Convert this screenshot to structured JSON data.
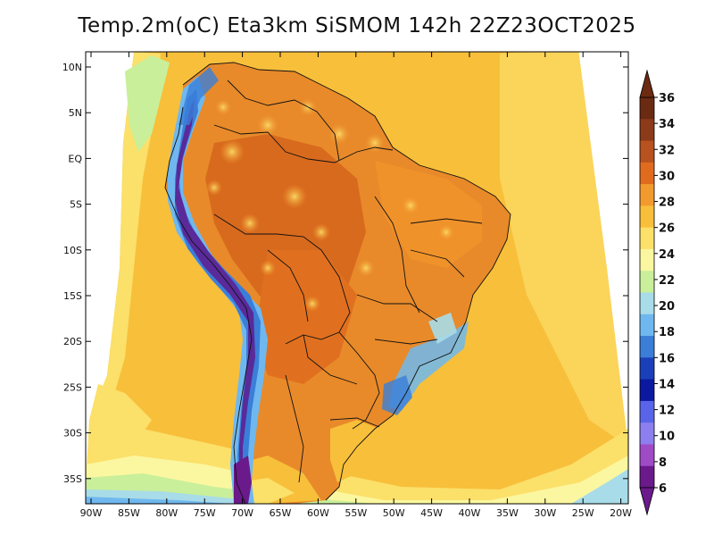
{
  "title": "Temp.2m(oC) Eta3km SiSMOM 142h 22Z23OCT2025",
  "lat_ticks": [
    "10N",
    "5N",
    "EQ",
    "5S",
    "10S",
    "15S",
    "20S",
    "25S",
    "30S",
    "35S"
  ],
  "lon_ticks": [
    "90W",
    "85W",
    "80W",
    "75W",
    "70W",
    "65W",
    "60W",
    "55W",
    "50W",
    "45W",
    "40W",
    "35W",
    "30W",
    "25W",
    "20W"
  ],
  "colorbar": {
    "labels": [
      "36",
      "34",
      "32",
      "30",
      "28",
      "26",
      "24",
      "22",
      "20",
      "18",
      "16",
      "14",
      "12",
      "10",
      "8",
      "6"
    ],
    "colors": [
      "#6b2a12",
      "#8b3a1a",
      "#b8521e",
      "#e06b1f",
      "#f39a2e",
      "#f8bf3a",
      "#fbe06a",
      "#fbf7a0",
      "#c9ef9a",
      "#a8dce8",
      "#6fb8ef",
      "#3a7ed8",
      "#1b3fb8",
      "#0b18a0",
      "#5a64e8",
      "#8d7ff0",
      "#a04bc6",
      "#6a1a8a"
    ],
    "top_cap": "#6b2a12",
    "bottom_cap": "#6a1a8a"
  }
}
